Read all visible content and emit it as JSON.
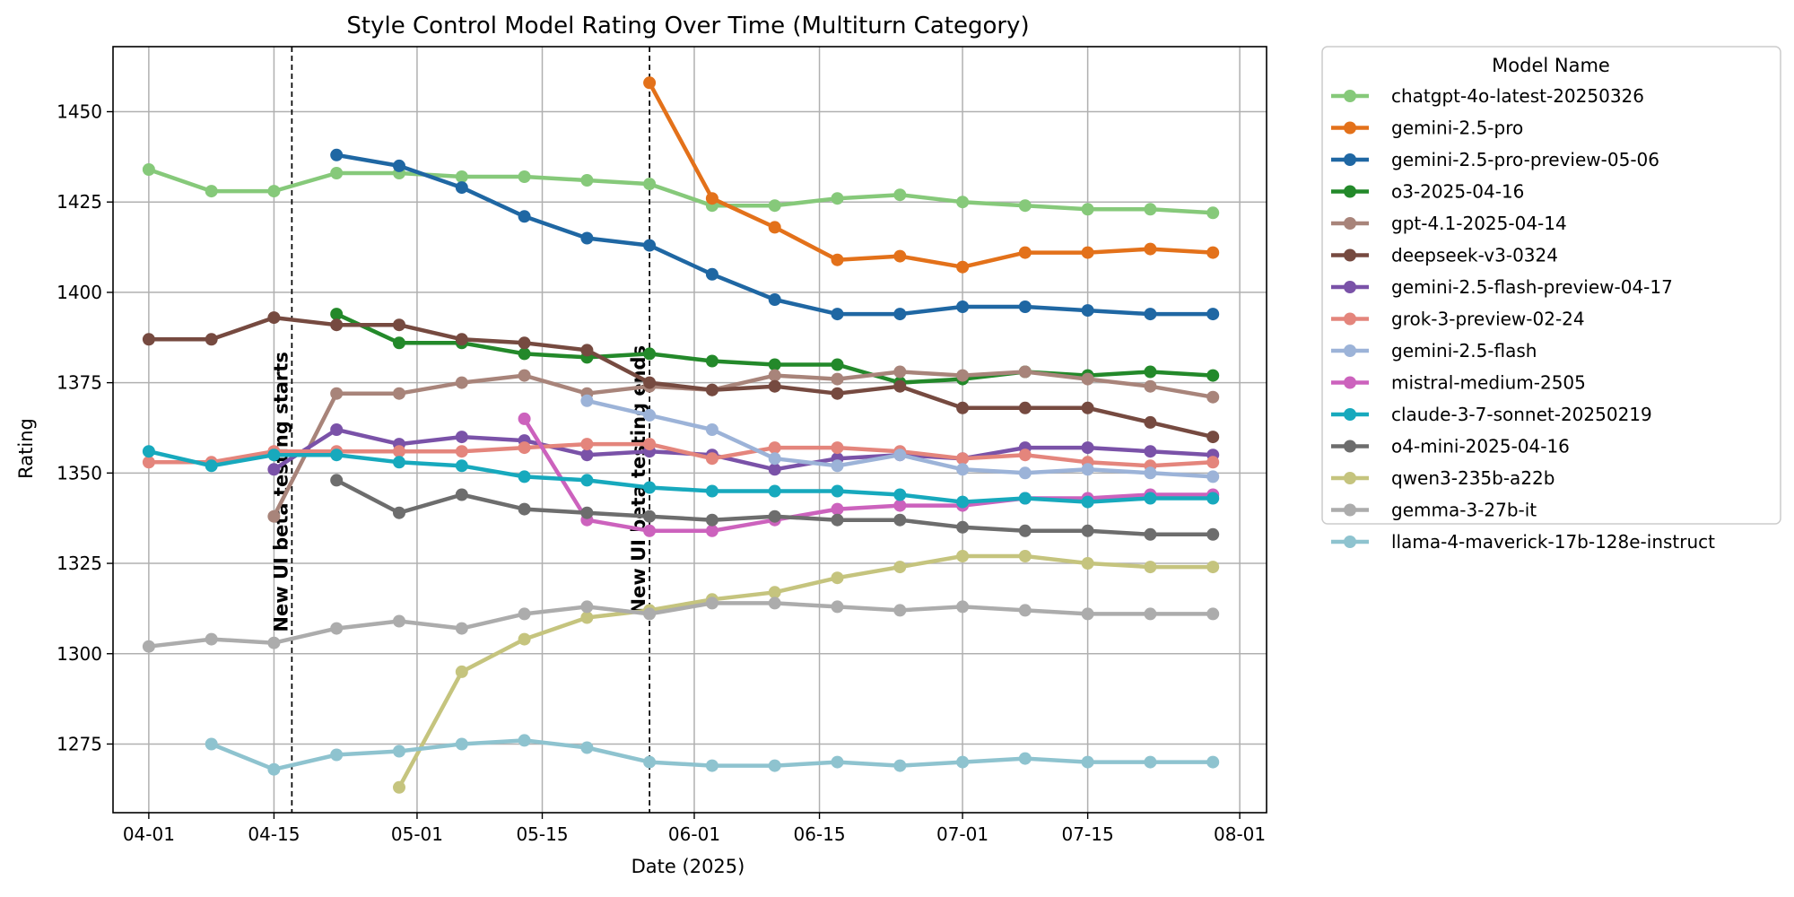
{
  "chart_data": {
    "type": "line",
    "title": "Style Control Model Rating Over Time (Multiturn Category)",
    "xlabel": "Date (2025)",
    "ylabel": "Rating",
    "x_tick_labels": [
      "04-01",
      "04-15",
      "05-01",
      "05-15",
      "06-01",
      "06-15",
      "07-01",
      "07-15",
      "08-01"
    ],
    "x_ticks": [
      "2025-04-01",
      "2025-04-15",
      "2025-05-01",
      "2025-05-15",
      "2025-06-01",
      "2025-06-15",
      "2025-07-01",
      "2025-07-15",
      "2025-08-01"
    ],
    "xlim": [
      "2025-03-28",
      "2025-08-04"
    ],
    "y_ticks": [
      1275,
      1300,
      1325,
      1350,
      1375,
      1400,
      1425,
      1450
    ],
    "ylim": [
      1256,
      1468
    ],
    "grid": true,
    "legend_title": "Model Name",
    "legend_position": "outside-right",
    "annotations": [
      {
        "date": "2025-04-17",
        "text": "New UI beta testing starts",
        "label_y": 1306
      },
      {
        "date": "2025-05-27",
        "text": "New UI beta testing ends",
        "label_y": 1311
      }
    ],
    "series": [
      {
        "name": "chatgpt-4o-latest-20250326",
        "color": "#86c97a",
        "points": [
          [
            "2025-04-01",
            1434
          ],
          [
            "2025-04-08",
            1428
          ],
          [
            "2025-04-15",
            1428
          ],
          [
            "2025-04-22",
            1433
          ],
          [
            "2025-04-29",
            1433
          ],
          [
            "2025-05-06",
            1432
          ],
          [
            "2025-05-13",
            1432
          ],
          [
            "2025-05-20",
            1431
          ],
          [
            "2025-05-27",
            1430
          ],
          [
            "2025-06-03",
            1424
          ],
          [
            "2025-06-10",
            1424
          ],
          [
            "2025-06-17",
            1426
          ],
          [
            "2025-06-24",
            1427
          ],
          [
            "2025-07-01",
            1425
          ],
          [
            "2025-07-08",
            1424
          ],
          [
            "2025-07-15",
            1423
          ],
          [
            "2025-07-22",
            1423
          ],
          [
            "2025-07-29",
            1422
          ]
        ]
      },
      {
        "name": "gemini-2.5-pro",
        "color": "#e3711a",
        "points": [
          [
            "2025-05-27",
            1458
          ],
          [
            "2025-06-03",
            1426
          ],
          [
            "2025-06-10",
            1418
          ],
          [
            "2025-06-17",
            1409
          ],
          [
            "2025-06-24",
            1410
          ],
          [
            "2025-07-01",
            1407
          ],
          [
            "2025-07-08",
            1411
          ],
          [
            "2025-07-15",
            1411
          ],
          [
            "2025-07-22",
            1412
          ],
          [
            "2025-07-29",
            1411
          ]
        ]
      },
      {
        "name": "gemini-2.5-pro-preview-05-06",
        "color": "#1f67a3",
        "points": [
          [
            "2025-04-22",
            1438
          ],
          [
            "2025-04-29",
            1435
          ],
          [
            "2025-05-06",
            1429
          ],
          [
            "2025-05-13",
            1421
          ],
          [
            "2025-05-20",
            1415
          ],
          [
            "2025-05-27",
            1413
          ],
          [
            "2025-06-03",
            1405
          ],
          [
            "2025-06-10",
            1398
          ],
          [
            "2025-06-17",
            1394
          ],
          [
            "2025-06-24",
            1394
          ],
          [
            "2025-07-01",
            1396
          ],
          [
            "2025-07-08",
            1396
          ],
          [
            "2025-07-15",
            1395
          ],
          [
            "2025-07-22",
            1394
          ],
          [
            "2025-07-29",
            1394
          ]
        ]
      },
      {
        "name": "o3-2025-04-16",
        "color": "#23892a",
        "points": [
          [
            "2025-04-22",
            1394
          ],
          [
            "2025-04-29",
            1386
          ],
          [
            "2025-05-06",
            1386
          ],
          [
            "2025-05-13",
            1383
          ],
          [
            "2025-05-20",
            1382
          ],
          [
            "2025-05-27",
            1383
          ],
          [
            "2025-06-03",
            1381
          ],
          [
            "2025-06-10",
            1380
          ],
          [
            "2025-06-17",
            1380
          ],
          [
            "2025-06-24",
            1375
          ],
          [
            "2025-07-01",
            1376
          ],
          [
            "2025-07-08",
            1378
          ],
          [
            "2025-07-15",
            1377
          ],
          [
            "2025-07-22",
            1378
          ],
          [
            "2025-07-29",
            1377
          ]
        ]
      },
      {
        "name": "gpt-4.1-2025-04-14",
        "color": "#a8847a",
        "points": [
          [
            "2025-04-15",
            1338
          ],
          [
            "2025-04-22",
            1372
          ],
          [
            "2025-04-29",
            1372
          ],
          [
            "2025-05-06",
            1375
          ],
          [
            "2025-05-13",
            1377
          ],
          [
            "2025-05-20",
            1372
          ],
          [
            "2025-05-27",
            1374
          ],
          [
            "2025-06-03",
            1373
          ],
          [
            "2025-06-10",
            1377
          ],
          [
            "2025-06-17",
            1376
          ],
          [
            "2025-06-24",
            1378
          ],
          [
            "2025-07-01",
            1377
          ],
          [
            "2025-07-08",
            1378
          ],
          [
            "2025-07-15",
            1376
          ],
          [
            "2025-07-22",
            1374
          ],
          [
            "2025-07-29",
            1371
          ]
        ]
      },
      {
        "name": "deepseek-v3-0324",
        "color": "#764a40",
        "points": [
          [
            "2025-04-01",
            1387
          ],
          [
            "2025-04-08",
            1387
          ],
          [
            "2025-04-15",
            1393
          ],
          [
            "2025-04-22",
            1391
          ],
          [
            "2025-04-29",
            1391
          ],
          [
            "2025-05-06",
            1387
          ],
          [
            "2025-05-13",
            1386
          ],
          [
            "2025-05-20",
            1384
          ],
          [
            "2025-05-27",
            1375
          ],
          [
            "2025-06-03",
            1373
          ],
          [
            "2025-06-10",
            1374
          ],
          [
            "2025-06-17",
            1372
          ],
          [
            "2025-06-24",
            1374
          ],
          [
            "2025-07-01",
            1368
          ],
          [
            "2025-07-08",
            1368
          ],
          [
            "2025-07-15",
            1368
          ],
          [
            "2025-07-22",
            1364
          ],
          [
            "2025-07-29",
            1360
          ]
        ]
      },
      {
        "name": "gemini-2.5-flash-preview-04-17",
        "color": "#7a52a8",
        "points": [
          [
            "2025-04-15",
            1351
          ],
          [
            "2025-04-22",
            1362
          ],
          [
            "2025-04-29",
            1358
          ],
          [
            "2025-05-06",
            1360
          ],
          [
            "2025-05-13",
            1359
          ],
          [
            "2025-05-20",
            1355
          ],
          [
            "2025-05-27",
            1356
          ],
          [
            "2025-06-03",
            1355
          ],
          [
            "2025-06-10",
            1351
          ],
          [
            "2025-06-17",
            1354
          ],
          [
            "2025-06-24",
            1355
          ],
          [
            "2025-07-01",
            1354
          ],
          [
            "2025-07-08",
            1357
          ],
          [
            "2025-07-15",
            1357
          ],
          [
            "2025-07-22",
            1356
          ],
          [
            "2025-07-29",
            1355
          ]
        ]
      },
      {
        "name": "grok-3-preview-02-24",
        "color": "#e4857c",
        "points": [
          [
            "2025-04-01",
            1353
          ],
          [
            "2025-04-08",
            1353
          ],
          [
            "2025-04-15",
            1356
          ],
          [
            "2025-04-22",
            1356
          ],
          [
            "2025-04-29",
            1356
          ],
          [
            "2025-05-06",
            1356
          ],
          [
            "2025-05-13",
            1357
          ],
          [
            "2025-05-20",
            1358
          ],
          [
            "2025-05-27",
            1358
          ],
          [
            "2025-06-03",
            1354
          ],
          [
            "2025-06-10",
            1357
          ],
          [
            "2025-06-17",
            1357
          ],
          [
            "2025-06-24",
            1356
          ],
          [
            "2025-07-01",
            1354
          ],
          [
            "2025-07-08",
            1355
          ],
          [
            "2025-07-15",
            1353
          ],
          [
            "2025-07-22",
            1352
          ],
          [
            "2025-07-29",
            1353
          ]
        ]
      },
      {
        "name": "gemini-2.5-flash",
        "color": "#9cb3d8",
        "points": [
          [
            "2025-05-20",
            1370
          ],
          [
            "2025-05-27",
            1366
          ],
          [
            "2025-06-03",
            1362
          ],
          [
            "2025-06-10",
            1354
          ],
          [
            "2025-06-17",
            1352
          ],
          [
            "2025-06-24",
            1355
          ],
          [
            "2025-07-01",
            1351
          ],
          [
            "2025-07-08",
            1350
          ],
          [
            "2025-07-15",
            1351
          ],
          [
            "2025-07-22",
            1350
          ],
          [
            "2025-07-29",
            1349
          ]
        ]
      },
      {
        "name": "mistral-medium-2505",
        "color": "#cc62bd",
        "points": [
          [
            "2025-05-13",
            1365
          ],
          [
            "2025-05-20",
            1337
          ],
          [
            "2025-05-27",
            1334
          ],
          [
            "2025-06-03",
            1334
          ],
          [
            "2025-06-10",
            1337
          ],
          [
            "2025-06-17",
            1340
          ],
          [
            "2025-06-24",
            1341
          ],
          [
            "2025-07-01",
            1341
          ],
          [
            "2025-07-08",
            1343
          ],
          [
            "2025-07-15",
            1343
          ],
          [
            "2025-07-22",
            1344
          ],
          [
            "2025-07-29",
            1344
          ]
        ]
      },
      {
        "name": "claude-3-7-sonnet-20250219",
        "color": "#17a9bd",
        "points": [
          [
            "2025-04-01",
            1356
          ],
          [
            "2025-04-08",
            1352
          ],
          [
            "2025-04-15",
            1355
          ],
          [
            "2025-04-22",
            1355
          ],
          [
            "2025-04-29",
            1353
          ],
          [
            "2025-05-06",
            1352
          ],
          [
            "2025-05-13",
            1349
          ],
          [
            "2025-05-20",
            1348
          ],
          [
            "2025-05-27",
            1346
          ],
          [
            "2025-06-03",
            1345
          ],
          [
            "2025-06-10",
            1345
          ],
          [
            "2025-06-17",
            1345
          ],
          [
            "2025-06-24",
            1344
          ],
          [
            "2025-07-01",
            1342
          ],
          [
            "2025-07-08",
            1343
          ],
          [
            "2025-07-15",
            1342
          ],
          [
            "2025-07-22",
            1343
          ],
          [
            "2025-07-29",
            1343
          ]
        ]
      },
      {
        "name": "o4-mini-2025-04-16",
        "color": "#6d6d6d",
        "points": [
          [
            "2025-04-22",
            1348
          ],
          [
            "2025-04-29",
            1339
          ],
          [
            "2025-05-06",
            1344
          ],
          [
            "2025-05-13",
            1340
          ],
          [
            "2025-05-20",
            1339
          ],
          [
            "2025-05-27",
            1338
          ],
          [
            "2025-06-03",
            1337
          ],
          [
            "2025-06-10",
            1338
          ],
          [
            "2025-06-17",
            1337
          ],
          [
            "2025-06-24",
            1337
          ],
          [
            "2025-07-01",
            1335
          ],
          [
            "2025-07-08",
            1334
          ],
          [
            "2025-07-15",
            1334
          ],
          [
            "2025-07-22",
            1333
          ],
          [
            "2025-07-29",
            1333
          ]
        ]
      },
      {
        "name": "qwen3-235b-a22b",
        "color": "#c5c47e",
        "points": [
          [
            "2025-04-29",
            1263
          ],
          [
            "2025-05-06",
            1295
          ],
          [
            "2025-05-13",
            1304
          ],
          [
            "2025-05-20",
            1310
          ],
          [
            "2025-05-27",
            1312
          ],
          [
            "2025-06-03",
            1315
          ],
          [
            "2025-06-10",
            1317
          ],
          [
            "2025-06-17",
            1321
          ],
          [
            "2025-06-24",
            1324
          ],
          [
            "2025-07-01",
            1327
          ],
          [
            "2025-07-08",
            1327
          ],
          [
            "2025-07-15",
            1325
          ],
          [
            "2025-07-22",
            1324
          ],
          [
            "2025-07-29",
            1324
          ]
        ]
      },
      {
        "name": "gemma-3-27b-it",
        "color": "#acacac",
        "points": [
          [
            "2025-04-01",
            1302
          ],
          [
            "2025-04-08",
            1304
          ],
          [
            "2025-04-15",
            1303
          ],
          [
            "2025-04-22",
            1307
          ],
          [
            "2025-04-29",
            1309
          ],
          [
            "2025-05-06",
            1307
          ],
          [
            "2025-05-13",
            1311
          ],
          [
            "2025-05-20",
            1313
          ],
          [
            "2025-05-27",
            1311
          ],
          [
            "2025-06-03",
            1314
          ],
          [
            "2025-06-10",
            1314
          ],
          [
            "2025-06-17",
            1313
          ],
          [
            "2025-06-24",
            1312
          ],
          [
            "2025-07-01",
            1313
          ],
          [
            "2025-07-08",
            1312
          ],
          [
            "2025-07-15",
            1311
          ],
          [
            "2025-07-22",
            1311
          ],
          [
            "2025-07-29",
            1311
          ]
        ]
      },
      {
        "name": "llama-4-maverick-17b-128e-instruct",
        "color": "#8ec3cf",
        "points": [
          [
            "2025-04-08",
            1275
          ],
          [
            "2025-04-15",
            1268
          ],
          [
            "2025-04-22",
            1272
          ],
          [
            "2025-04-29",
            1273
          ],
          [
            "2025-05-06",
            1275
          ],
          [
            "2025-05-13",
            1276
          ],
          [
            "2025-05-20",
            1274
          ],
          [
            "2025-05-27",
            1270
          ],
          [
            "2025-06-03",
            1269
          ],
          [
            "2025-06-10",
            1269
          ],
          [
            "2025-06-17",
            1270
          ],
          [
            "2025-06-24",
            1269
          ],
          [
            "2025-07-01",
            1270
          ],
          [
            "2025-07-08",
            1271
          ],
          [
            "2025-07-15",
            1270
          ],
          [
            "2025-07-22",
            1270
          ],
          [
            "2025-07-29",
            1270
          ]
        ]
      }
    ]
  }
}
